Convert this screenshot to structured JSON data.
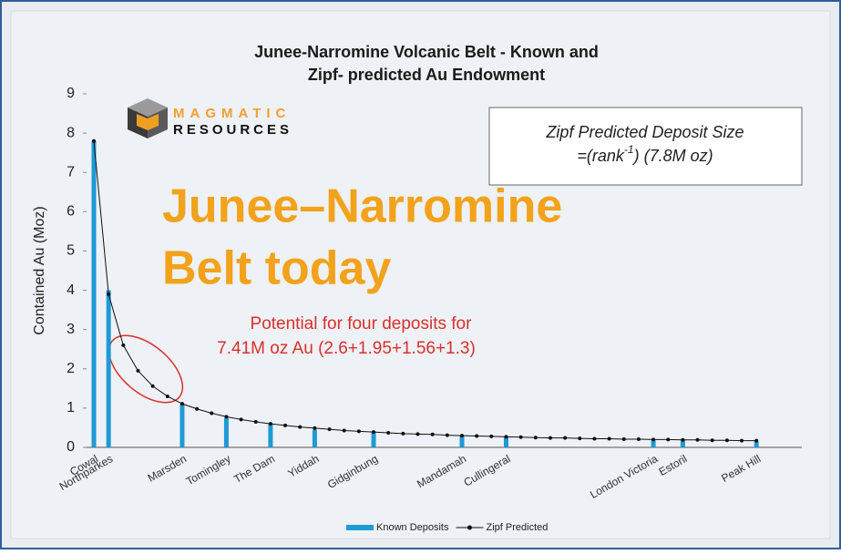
{
  "chart_data": {
    "type": "bar",
    "title": [
      "Junee-Narromine Volcanic Belt - Known and",
      "Zipf- predicted Au Endowment"
    ],
    "y_label": "Contained Au (Moz)",
    "logo": [
      "MAGMATIC",
      "RESOURCES"
    ],
    "formula_box": {
      "title": "Zipf Predicted Deposit Size",
      "formula": [
        "=(rank",
        "-1",
        ") (7.8M oz)"
      ]
    },
    "overlay": [
      "Junee–Narromine",
      "Belt today"
    ],
    "annotation": [
      "Potential for four deposits for",
      "7.41M oz Au (2.6+1.95+1.56+1.3)"
    ],
    "categories": [
      "Cowal",
      "Northparkes",
      null,
      null,
      null,
      null,
      "Marsden",
      null,
      null,
      "Tomingley",
      null,
      null,
      "The Dam",
      null,
      null,
      "Yiddah",
      null,
      null,
      null,
      "Gidginbung",
      null,
      null,
      null,
      null,
      null,
      "Mandamah",
      null,
      null,
      "Cullingeral",
      null,
      null,
      null,
      null,
      null,
      null,
      null,
      null,
      null,
      "London Victoria",
      null,
      "Estoril",
      null,
      null,
      null,
      null,
      "Peak Hill"
    ],
    "series": [
      {
        "name": "Known Deposits",
        "type": "bar",
        "color": "#1e9ad6",
        "values": [
          7.8,
          4.0,
          null,
          null,
          null,
          null,
          1.1,
          null,
          null,
          0.75,
          null,
          null,
          0.6,
          null,
          null,
          0.45,
          null,
          null,
          null,
          0.38,
          null,
          null,
          null,
          null,
          null,
          0.28,
          null,
          null,
          0.25,
          null,
          null,
          null,
          null,
          null,
          null,
          null,
          null,
          null,
          0.18,
          null,
          0.18,
          null,
          null,
          null,
          null,
          0.15
        ]
      },
      {
        "name": "Zipf Predicted",
        "type": "line",
        "color": "#111111",
        "values": [
          7.8,
          3.9,
          2.6,
          1.95,
          1.56,
          1.3,
          1.11,
          0.98,
          0.87,
          0.78,
          0.71,
          0.65,
          0.6,
          0.56,
          0.52,
          0.49,
          0.46,
          0.43,
          0.41,
          0.39,
          0.37,
          0.35,
          0.34,
          0.33,
          0.31,
          0.3,
          0.29,
          0.28,
          0.27,
          0.26,
          0.25,
          0.24,
          0.24,
          0.23,
          0.22,
          0.22,
          0.21,
          0.21,
          0.2,
          0.2,
          0.19,
          0.19,
          0.18,
          0.18,
          0.17,
          0.17
        ]
      }
    ],
    "ylim": [
      0,
      9
    ],
    "yticks": [
      0,
      1,
      2,
      3,
      4,
      5,
      6,
      7,
      8,
      9
    ],
    "grid": false,
    "legend": "bottom"
  }
}
